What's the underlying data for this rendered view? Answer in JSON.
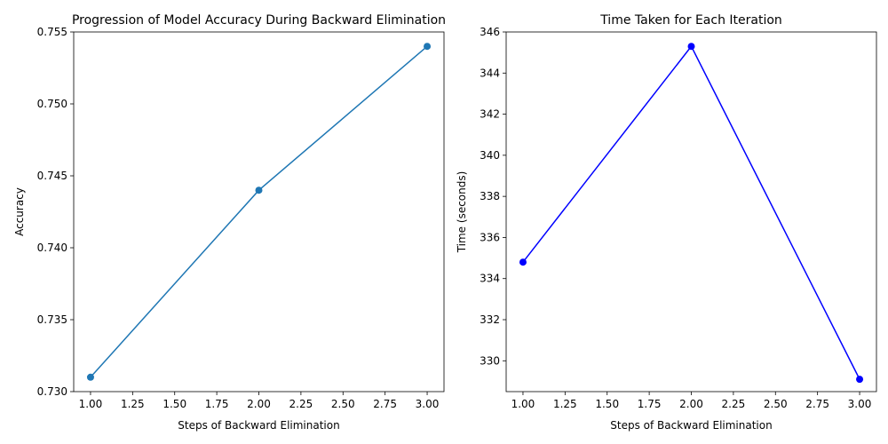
{
  "chart_data": [
    {
      "type": "line",
      "title": "Progression of Model Accuracy During Backward Elimination",
      "xlabel": "Steps of Backward Elimination",
      "ylabel": "Accuracy",
      "x": [
        1,
        2,
        3
      ],
      "series": [
        {
          "values": [
            0.731,
            0.744,
            0.754
          ],
          "color": "#1f77b4",
          "marker": "circle"
        }
      ],
      "xlim": [
        0.9,
        3.1
      ],
      "ylim": [
        0.73,
        0.755
      ],
      "xticks": [
        1.0,
        1.25,
        1.5,
        1.75,
        2.0,
        2.25,
        2.5,
        2.75,
        3.0
      ],
      "xtick_labels": [
        "1.00",
        "1.25",
        "1.50",
        "1.75",
        "2.00",
        "2.25",
        "2.50",
        "2.75",
        "3.00"
      ],
      "yticks": [
        0.73,
        0.735,
        0.74,
        0.745,
        0.75,
        0.755
      ],
      "ytick_labels": [
        "0.730",
        "0.735",
        "0.740",
        "0.745",
        "0.750",
        "0.755"
      ],
      "grid": false
    },
    {
      "type": "line",
      "title": "Time Taken for Each Iteration",
      "xlabel": "Steps of Backward Elimination",
      "ylabel": "Time (seconds)",
      "x": [
        1,
        2,
        3
      ],
      "series": [
        {
          "values": [
            334.8,
            345.3,
            329.1
          ],
          "color": "#0000ff",
          "marker": "circle"
        }
      ],
      "xlim": [
        0.9,
        3.1
      ],
      "ylim": [
        328.5,
        346
      ],
      "xticks": [
        1.0,
        1.25,
        1.5,
        1.75,
        2.0,
        2.25,
        2.5,
        2.75,
        3.0
      ],
      "xtick_labels": [
        "1.00",
        "1.25",
        "1.50",
        "1.75",
        "2.00",
        "2.25",
        "2.50",
        "2.75",
        "3.00"
      ],
      "yticks": [
        330,
        332,
        334,
        336,
        338,
        340,
        342,
        344,
        346
      ],
      "ytick_labels": [
        "330",
        "332",
        "334",
        "336",
        "338",
        "340",
        "342",
        "344",
        "346"
      ],
      "grid": false
    }
  ]
}
